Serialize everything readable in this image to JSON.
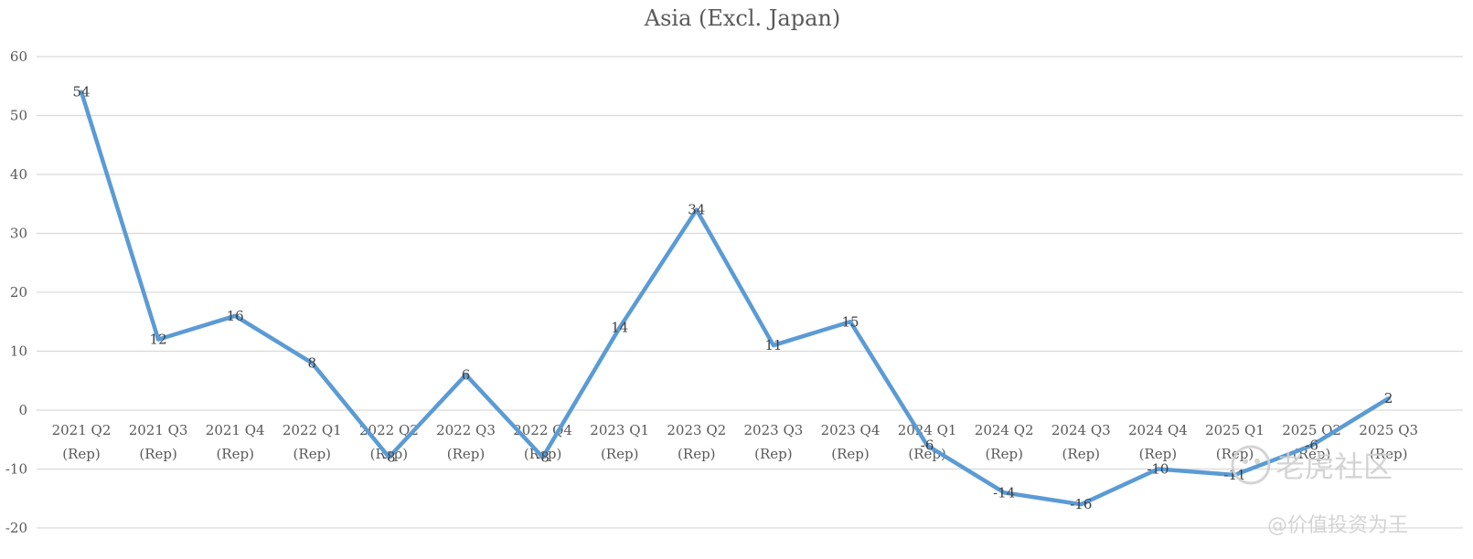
{
  "chart_data": {
    "type": "line",
    "title": "Asia (Excl. Japan)",
    "xlabel": "",
    "ylabel": "",
    "categories": [
      [
        "2021 Q2",
        "(Rep)"
      ],
      [
        "2021 Q3",
        "(Rep)"
      ],
      [
        "2021 Q4",
        "(Rep)"
      ],
      [
        "2022 Q1",
        "(Rep)"
      ],
      [
        "2022 Q2",
        "(Rep)"
      ],
      [
        "2022 Q3",
        "(Rep)"
      ],
      [
        "2022 Q4",
        "(Rep)"
      ],
      [
        "2023 Q1",
        "(Rep)"
      ],
      [
        "2023 Q2",
        "(Rep)"
      ],
      [
        "2023 Q3",
        "(Rep)"
      ],
      [
        "2023 Q4",
        "(Rep)"
      ],
      [
        "2024 Q1",
        "(Rep)"
      ],
      [
        "2024 Q2",
        "(Rep)"
      ],
      [
        "2024 Q3",
        "(Rep)"
      ],
      [
        "2024 Q4",
        "(Rep)"
      ],
      [
        "2025 Q1",
        "(Rep)"
      ],
      [
        "2025 Q2",
        "(Rep)"
      ],
      [
        "2025 Q3",
        "(Rep)"
      ]
    ],
    "series": [
      {
        "values": [
          54,
          12,
          16,
          8,
          -8,
          6,
          -8,
          14,
          34,
          11,
          15,
          -6,
          -14,
          -16,
          -10,
          -11,
          -6,
          2
        ]
      }
    ],
    "data_labels": [
      "54",
      "12",
      "16",
      "8",
      "-8",
      "6",
      "-8",
      "14",
      "34",
      "11",
      "15",
      "-6",
      "-14",
      "-16",
      "-10",
      "-11",
      "-6",
      "2"
    ],
    "ylim": [
      -20,
      60
    ],
    "yticks": [
      60,
      50,
      40,
      30,
      20,
      10,
      0,
      -10,
      -20
    ],
    "grid": true,
    "legend": "none",
    "line_color": "#5b9bd5",
    "grid_color": "#d9d9d9"
  },
  "watermark": {
    "brand_text": "老虎社区",
    "handle_text": "@价值投资为王",
    "icon": "tiger-logo-icon"
  }
}
